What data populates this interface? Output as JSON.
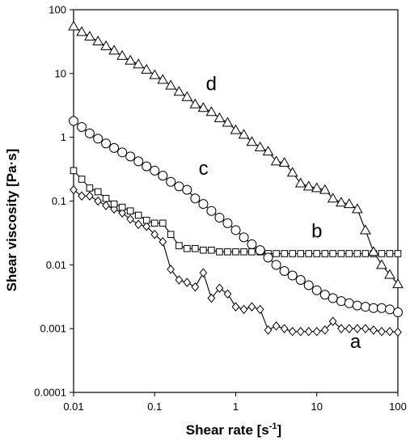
{
  "chart_data": {
    "type": "scatter",
    "xscale": "log",
    "yscale": "log",
    "xlim": [
      0.01,
      100
    ],
    "ylim": [
      0.0001,
      100
    ],
    "xlabel_main": "Shear rate [s",
    "xlabel_sup": "-1",
    "xlabel_end": "]",
    "ylabel": "Shear viscosity [Pa·s]",
    "x_ticks": [
      {
        "value": 0.01,
        "label": "0.01"
      },
      {
        "value": 0.1,
        "label": "0.1"
      },
      {
        "value": 1,
        "label": "1"
      },
      {
        "value": 10,
        "label": "10"
      },
      {
        "value": 100,
        "label": "100"
      }
    ],
    "y_ticks": [
      {
        "value": 0.0001,
        "label": "0.0001"
      },
      {
        "value": 0.001,
        "label": "0.001"
      },
      {
        "value": 0.01,
        "label": "0.01"
      },
      {
        "value": 0.1,
        "label": "0.1"
      },
      {
        "value": 1,
        "label": "1"
      },
      {
        "value": 10,
        "label": "10"
      },
      {
        "value": 100,
        "label": "100"
      }
    ],
    "grid": false,
    "series": [
      {
        "label": "a",
        "marker": "diamond",
        "label_at": {
          "x": 30,
          "y": 0.0005
        },
        "x": [
          0.01,
          0.0126,
          0.0158,
          0.02,
          0.0251,
          0.0316,
          0.0398,
          0.0501,
          0.0631,
          0.0794,
          0.1,
          0.126,
          0.158,
          0.2,
          0.251,
          0.316,
          0.398,
          0.501,
          0.631,
          0.794,
          1.0,
          1.26,
          1.58,
          2.0,
          2.51,
          3.16,
          3.98,
          5.01,
          6.31,
          7.94,
          10.0,
          12.6,
          15.8,
          20.0,
          25.1,
          31.6,
          39.8,
          50.1,
          63.1,
          79.4,
          100
        ],
        "y": [
          0.15,
          0.12,
          0.12,
          0.1,
          0.085,
          0.075,
          0.065,
          0.052,
          0.043,
          0.04,
          0.03,
          0.023,
          0.0085,
          0.0058,
          0.0053,
          0.0045,
          0.0075,
          0.003,
          0.0043,
          0.0035,
          0.0022,
          0.002,
          0.0022,
          0.002,
          0.00095,
          0.0011,
          0.001,
          0.0009,
          0.0009,
          0.0009,
          0.0009,
          0.00095,
          0.0013,
          0.001,
          0.001,
          0.001,
          0.001,
          0.00095,
          0.0009,
          0.0009,
          0.00088
        ]
      },
      {
        "label": "b",
        "marker": "square",
        "label_at": {
          "x": 10,
          "y": 0.027
        },
        "x": [
          0.01,
          0.0126,
          0.0158,
          0.02,
          0.0251,
          0.0316,
          0.0398,
          0.0501,
          0.0631,
          0.0794,
          0.1,
          0.126,
          0.158,
          0.2,
          0.251,
          0.316,
          0.398,
          0.501,
          0.631,
          0.794,
          1.0,
          1.26,
          1.58,
          2.0,
          2.51,
          3.16,
          3.98,
          5.01,
          6.31,
          7.94,
          10.0,
          12.6,
          15.8,
          20.0,
          25.1,
          31.6,
          39.8,
          50.1,
          63.1,
          79.4,
          100
        ],
        "y": [
          0.3,
          0.22,
          0.16,
          0.14,
          0.11,
          0.09,
          0.08,
          0.07,
          0.06,
          0.05,
          0.045,
          0.045,
          0.03,
          0.02,
          0.018,
          0.018,
          0.017,
          0.017,
          0.016,
          0.016,
          0.016,
          0.016,
          0.016,
          0.016,
          0.015,
          0.015,
          0.015,
          0.015,
          0.015,
          0.015,
          0.015,
          0.015,
          0.015,
          0.015,
          0.015,
          0.015,
          0.015,
          0.015,
          0.015,
          0.015,
          0.015
        ]
      },
      {
        "label": "c",
        "marker": "circle",
        "label_at": {
          "x": 0.4,
          "y": 0.26
        },
        "x": [
          0.01,
          0.0126,
          0.0158,
          0.02,
          0.0251,
          0.0316,
          0.0398,
          0.0501,
          0.0631,
          0.0794,
          0.1,
          0.126,
          0.158,
          0.2,
          0.251,
          0.316,
          0.398,
          0.501,
          0.631,
          0.794,
          1.0,
          1.26,
          1.58,
          2.0,
          2.51,
          3.16,
          3.98,
          5.01,
          6.31,
          7.94,
          10.0,
          12.6,
          15.8,
          20.0,
          25.1,
          31.6,
          39.8,
          50.1,
          63.1,
          79.4,
          100
        ],
        "y": [
          1.8,
          1.45,
          1.15,
          0.95,
          0.8,
          0.68,
          0.58,
          0.5,
          0.42,
          0.35,
          0.3,
          0.25,
          0.2,
          0.17,
          0.15,
          0.11,
          0.09,
          0.07,
          0.055,
          0.045,
          0.035,
          0.027,
          0.021,
          0.017,
          0.013,
          0.01,
          0.008,
          0.0068,
          0.0058,
          0.0048,
          0.004,
          0.0034,
          0.003,
          0.0027,
          0.0025,
          0.0023,
          0.0022,
          0.0021,
          0.0021,
          0.002,
          0.0018
        ]
      },
      {
        "label": "d",
        "marker": "triangle",
        "label_at": {
          "x": 0.5,
          "y": 5.5
        },
        "x": [
          0.01,
          0.0126,
          0.0158,
          0.02,
          0.0251,
          0.0316,
          0.0398,
          0.0501,
          0.0631,
          0.0794,
          0.1,
          0.126,
          0.158,
          0.2,
          0.251,
          0.316,
          0.398,
          0.501,
          0.631,
          0.794,
          1.0,
          1.26,
          1.58,
          2.0,
          2.51,
          3.16,
          3.98,
          5.01,
          6.31,
          7.94,
          10.0,
          12.6,
          15.8,
          20.0,
          25.1,
          31.6,
          39.8,
          50.1,
          63.1,
          79.4,
          100
        ],
        "y": [
          55,
          45,
          38,
          32,
          27,
          23,
          19,
          16,
          14,
          11.5,
          9.5,
          8.0,
          6.5,
          5.2,
          4.3,
          3.3,
          2.9,
          2.5,
          2.0,
          1.7,
          1.3,
          1.1,
          0.85,
          0.7,
          0.6,
          0.42,
          0.4,
          0.28,
          0.19,
          0.17,
          0.16,
          0.15,
          0.11,
          0.095,
          0.09,
          0.075,
          0.035,
          0.016,
          0.01,
          0.007,
          0.005
        ]
      }
    ]
  }
}
